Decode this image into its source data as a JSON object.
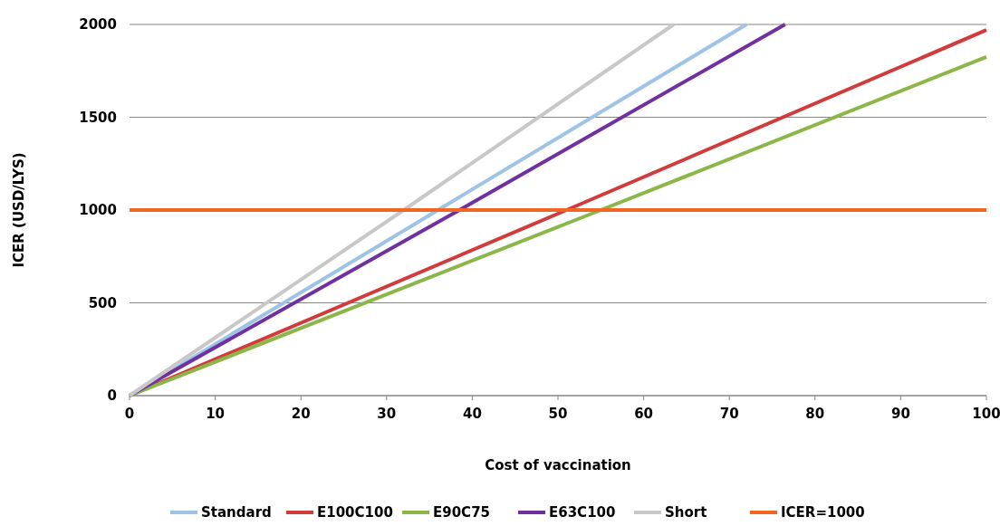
{
  "chart_data": {
    "type": "line",
    "xlabel": "Cost of vaccination",
    "ylabel": "ICER (USD/LYS)",
    "xlim": [
      0,
      100
    ],
    "ylim": [
      0,
      2000
    ],
    "xticks": [
      0,
      10,
      20,
      30,
      40,
      50,
      60,
      70,
      80,
      90,
      100
    ],
    "yticks": [
      0,
      500,
      1000,
      1500,
      2000
    ],
    "grid": "y",
    "legend": "bottom",
    "marker": "none",
    "line_style": "solid",
    "series": [
      {
        "name": "Standard",
        "color": "#9dc3e6",
        "x": [
          0,
          36,
          72
        ],
        "values": [
          0,
          1000,
          2000
        ]
      },
      {
        "name": "E100C100",
        "color": "#d13b3b",
        "x": [
          0,
          51,
          100
        ],
        "values": [
          0,
          1000,
          1970
        ]
      },
      {
        "name": "E90C75",
        "color": "#8cb648",
        "x": [
          0,
          55,
          100
        ],
        "values": [
          0,
          1000,
          1825
        ]
      },
      {
        "name": "E63C100",
        "color": "#7030a0",
        "x": [
          0,
          38.5,
          76.5
        ],
        "values": [
          0,
          1000,
          2000
        ]
      },
      {
        "name": "Short",
        "color": "#c8c8c8",
        "x": [
          0,
          32,
          63.5
        ],
        "values": [
          0,
          1000,
          2000
        ]
      },
      {
        "name": "ICER=1000",
        "color": "#f26522",
        "x": [
          0,
          100
        ],
        "values": [
          1000,
          1000
        ]
      }
    ]
  }
}
